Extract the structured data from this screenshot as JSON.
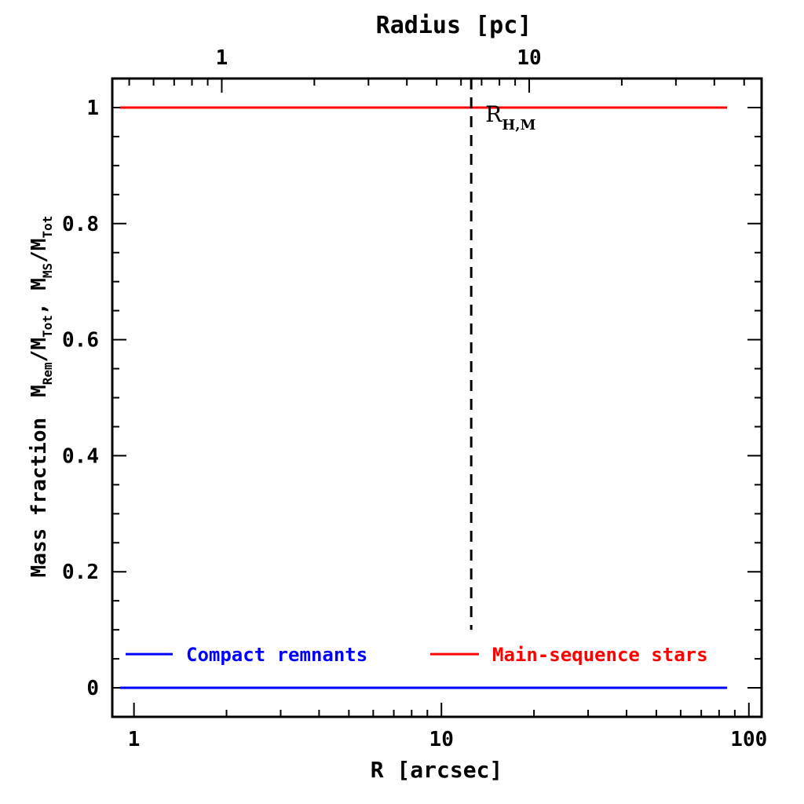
{
  "chart_data": {
    "type": "line",
    "xlabel": "R [arcsec]",
    "xscale": "log",
    "xlim": [
      0.85,
      110
    ],
    "x_ticks": [
      "1",
      "10",
      "100"
    ],
    "x2label": "Radius [pc]",
    "x2scale": "log",
    "x2_ticks": [
      "1",
      "10"
    ],
    "x2_tick_positions_arcsec": [
      1.93,
      19.3
    ],
    "ylabel_prefix": "Mass fraction",
    "ylabel_parts": {
      "m1": "M",
      "s1": "Rem",
      "m2": "/M",
      "s2": "Tot",
      "sep": ", ",
      "m3": "M",
      "s3": "MS",
      "m4": "/M",
      "s4": "Tot"
    },
    "ylim": [
      -0.05,
      1.05
    ],
    "y_ticks": [
      "0",
      "0.2",
      "0.4",
      "0.6",
      "0.8",
      "1"
    ],
    "series": [
      {
        "name": "Compact remnants",
        "color": "#0000ff",
        "x": [
          0.9,
          85
        ],
        "y": [
          0,
          0
        ]
      },
      {
        "name": "Main-sequence stars",
        "color": "#ff0000",
        "x": [
          0.9,
          85
        ],
        "y": [
          1,
          1
        ]
      }
    ],
    "vline": {
      "x": 12.5,
      "ylim": [
        0.1,
        1.05
      ],
      "style": "dashed",
      "label_main": "R",
      "label_sub": "H,M"
    },
    "legend": "bottom"
  }
}
